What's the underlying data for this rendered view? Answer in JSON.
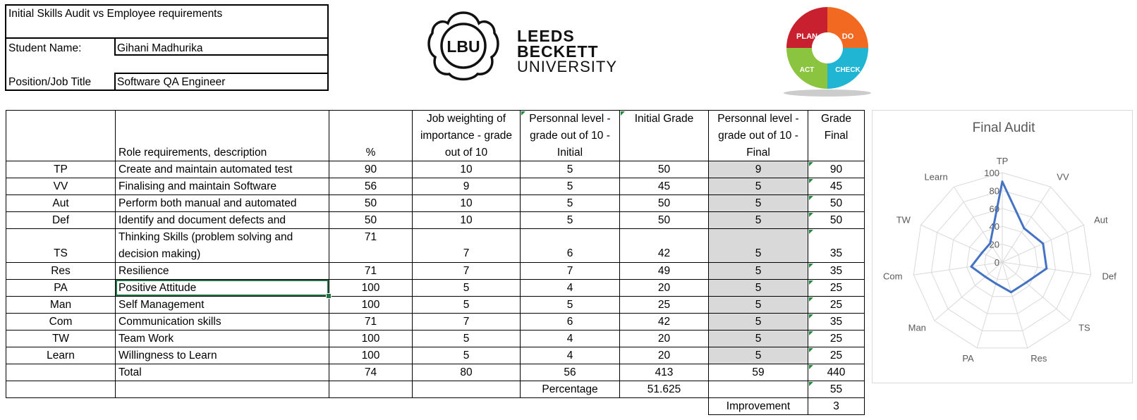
{
  "info": {
    "title": "Initial Skills Audit vs Employee requirements",
    "student_label": "Student Name:",
    "student_value": "Gihani Madhurika",
    "position_label": "Position/Job Title",
    "position_value": "Software QA Engineer"
  },
  "logo": {
    "emblem_text": "LBU",
    "line1": "LEEDS",
    "line2": "BECKETT",
    "line3": "UNIVERSITY"
  },
  "pdca": {
    "plan": "PLAN",
    "do": "DO",
    "check": "CHECK",
    "act": "ACT"
  },
  "colors": {
    "pdca_plan": "#c8202f",
    "pdca_do": "#f26a21",
    "pdca_check": "#1fb5d3",
    "pdca_act": "#8bc53f",
    "chart_line": "#4472c4",
    "shaded_cell": "#d9d9d9"
  },
  "table": {
    "headers": {
      "role": "Role requirements, description",
      "percent": "%",
      "job_weighting_l1": "Job weighting of",
      "job_weighting_l2": "importance - grade",
      "job_weighting_l3": "out of 10",
      "initial_level_l1": "Personnal level -",
      "initial_level_l2": "grade out of 10 -",
      "initial_level_l3": "Initial",
      "initial_grade": "Initial Grade",
      "final_level_l1": "Personnal level -",
      "final_level_l2": "grade out of 10 -",
      "final_level_l3": "Final",
      "grade_final_l1": "Grade",
      "grade_final_l2": "Final"
    },
    "rows": [
      {
        "code": "TP",
        "desc": "Create and maintain automated test",
        "pct": "90",
        "weight": "10",
        "init_level": "5",
        "init_grade": "50",
        "final_level": "9",
        "final_grade": "90"
      },
      {
        "code": "VV",
        "desc": "Finalising and maintain Software",
        "pct": "56",
        "weight": "9",
        "init_level": "5",
        "init_grade": "45",
        "final_level": "5",
        "final_grade": "45"
      },
      {
        "code": "Aut",
        "desc": "Perform both manual and automated",
        "pct": "50",
        "weight": "10",
        "init_level": "5",
        "init_grade": "50",
        "final_level": "5",
        "final_grade": "50"
      },
      {
        "code": "Def",
        "desc": "Identify and document defects and",
        "pct": "50",
        "weight": "10",
        "init_level": "5",
        "init_grade": "50",
        "final_level": "5",
        "final_grade": "50"
      },
      {
        "code": "TS",
        "desc_l1": "Thinking Skills (problem solving and",
        "desc_l2": "decision making)",
        "pct": "71",
        "weight": "7",
        "init_level": "6",
        "init_grade": "42",
        "final_level": "5",
        "final_grade": "35"
      },
      {
        "code": "Res",
        "desc": "Resilience",
        "pct": "71",
        "weight": "7",
        "init_level": "7",
        "init_grade": "49",
        "final_level": "5",
        "final_grade": "35"
      },
      {
        "code": "PA",
        "desc": "Positive Attitude",
        "pct": "100",
        "weight": "5",
        "init_level": "4",
        "init_grade": "20",
        "final_level": "5",
        "final_grade": "25"
      },
      {
        "code": "Man",
        "desc": "Self Management",
        "pct": "100",
        "weight": "5",
        "init_level": "5",
        "init_grade": "25",
        "final_level": "5",
        "final_grade": "25"
      },
      {
        "code": "Com",
        "desc": "Communication skills",
        "pct": "71",
        "weight": "7",
        "init_level": "6",
        "init_grade": "42",
        "final_level": "5",
        "final_grade": "35"
      },
      {
        "code": "TW",
        "desc": "Team Work",
        "pct": "100",
        "weight": "5",
        "init_level": "4",
        "init_grade": "20",
        "final_level": "5",
        "final_grade": "25"
      },
      {
        "code": "Learn",
        "desc": "Willingness to Learn",
        "pct": "100",
        "weight": "5",
        "init_level": "4",
        "init_grade": "20",
        "final_level": "5",
        "final_grade": "25"
      }
    ],
    "total": {
      "label": "Total",
      "pct": "74",
      "weight": "80",
      "init_level": "56",
      "init_grade": "413",
      "final_level": "59",
      "final_grade": "440"
    },
    "percentage": {
      "label": "Percentage",
      "init_value": "51.625",
      "final_value": "55"
    },
    "improvement": {
      "label": "Improvement",
      "value": "3"
    }
  },
  "chart_data": {
    "type": "radar",
    "title": "Final Audit",
    "categories": [
      "TP",
      "VV",
      "Aut",
      "Def",
      "TS",
      "Res",
      "PA",
      "Man",
      "Com",
      "TW",
      "Learn"
    ],
    "series": [
      {
        "values": [
          90,
          45,
          50,
          50,
          35,
          35,
          25,
          25,
          35,
          25,
          25
        ]
      }
    ],
    "r_ticks": [
      "0",
      "20",
      "40",
      "60",
      "80",
      "100"
    ],
    "r_range": [
      0,
      100
    ],
    "grid": true
  }
}
